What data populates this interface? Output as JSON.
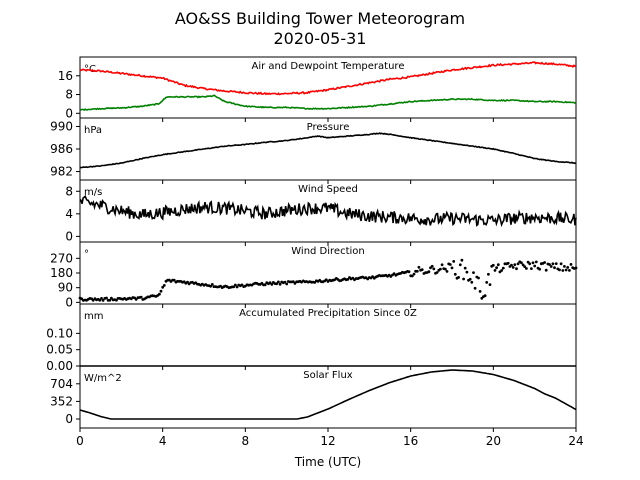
{
  "figure": {
    "title": "AO&SS Building Tower Meteorogram",
    "subtitle": "2020-05-31",
    "xlabel": "Time (UTC)"
  },
  "chart_data": {
    "type": "line",
    "x_range": [
      0,
      24
    ],
    "x_ticks": [
      0,
      4,
      8,
      12,
      16,
      20,
      24
    ],
    "x_tick_labels": [
      "0",
      "4",
      "8",
      "12",
      "16",
      "20",
      "24"
    ],
    "panels": [
      {
        "title": "Air and Dewpoint Temperature",
        "unit": "°C",
        "ylim": [
          -2,
          24
        ],
        "yticks": [
          0,
          8,
          16
        ],
        "grid": false,
        "series": [
          {
            "color": "#ff0000",
            "style": "line",
            "x": [
              0,
              1,
              2,
              3,
              4,
              5,
              6,
              7,
              8,
              9,
              10,
              11,
              12,
              13,
              14,
              15,
              16,
              17,
              18,
              19,
              20,
              21,
              22,
              23,
              24
            ],
            "y": [
              18.5,
              18.0,
              17.0,
              16.0,
              15.0,
              12.0,
              10.5,
              9.5,
              8.8,
              8.3,
              8.4,
              8.8,
              10.0,
              11.5,
              13.0,
              14.5,
              15.5,
              17.0,
              18.5,
              19.5,
              20.5,
              21.0,
              21.5,
              21.0,
              20.0
            ]
          },
          {
            "color": "#008000",
            "style": "line",
            "x": [
              0,
              1,
              2,
              3,
              3.8,
              4.2,
              5,
              6,
              6.5,
              7,
              8,
              9,
              10,
              11,
              12,
              13,
              14,
              15,
              16,
              17,
              18,
              19,
              20,
              21,
              22,
              23,
              24
            ],
            "y": [
              1.5,
              2.0,
              2.3,
              3.0,
              4.0,
              7.0,
              7.0,
              7.0,
              7.5,
              5.0,
              3.0,
              2.5,
              2.5,
              2.0,
              2.0,
              2.5,
              3.0,
              4.0,
              5.0,
              5.5,
              6.0,
              6.0,
              5.5,
              5.5,
              5.0,
              5.0,
              4.5
            ]
          }
        ]
      },
      {
        "title": "Pressure",
        "unit": "hPa",
        "ylim": [
          980.5,
          991.5
        ],
        "yticks": [
          982,
          986,
          990
        ],
        "grid": false,
        "series": [
          {
            "color": "#000000",
            "style": "line",
            "x": [
              0,
              1,
              2,
              3,
              4,
              5,
              6,
              7,
              8,
              9,
              10,
              11,
              11.5,
              12,
              13,
              14,
              14.5,
              15,
              16,
              17,
              18,
              19,
              20,
              21,
              22,
              23,
              24
            ],
            "y": [
              982.7,
              983.0,
              983.5,
              984.3,
              985.0,
              985.5,
              986.0,
              986.5,
              986.8,
              987.2,
              987.5,
              988.0,
              988.3,
              988.0,
              988.3,
              988.6,
              988.8,
              988.6,
              988.0,
              987.5,
              987.0,
              986.5,
              986.0,
              985.2,
              984.3,
              983.8,
              983.5
            ]
          }
        ]
      },
      {
        "title": "Wind Speed",
        "unit": "m/s",
        "ylim": [
          -1,
          10
        ],
        "yticks": [
          0,
          4,
          8
        ],
        "grid": false,
        "series": [
          {
            "color": "#000000",
            "style": "line",
            "x": [
              0,
              1,
              2,
              3,
              4,
              5,
              6,
              7,
              8,
              9,
              10,
              11,
              12,
              13,
              14,
              15,
              16,
              17,
              18,
              19,
              20,
              21,
              22,
              23,
              24
            ],
            "y": [
              6.2,
              5.5,
              4.5,
              3.8,
              4.2,
              4.8,
              5.2,
              5.0,
              4.5,
              4.0,
              4.6,
              5.0,
              5.0,
              4.0,
              3.6,
              3.4,
              3.2,
              3.0,
              3.2,
              3.0,
              2.8,
              3.2,
              3.4,
              3.2,
              3.0
            ]
          }
        ]
      },
      {
        "title": "Wind Direction",
        "unit": "°",
        "ylim": [
          -10,
          370
        ],
        "yticks": [
          0,
          90,
          180,
          270
        ],
        "grid": false,
        "series": [
          {
            "color": "#000000",
            "style": "dots",
            "x": [
              0,
              1,
              2,
              3,
              3.8,
              4.2,
              5,
              6,
              7,
              8,
              9,
              10,
              11,
              12,
              13,
              14,
              15,
              16,
              17,
              18,
              18.5,
              19,
              19.5,
              20,
              21,
              22,
              23,
              24
            ],
            "y": [
              20,
              18,
              22,
              25,
              40,
              135,
              125,
              110,
              95,
              105,
              115,
              120,
              125,
              135,
              145,
              150,
              165,
              185,
              200,
              215,
              200,
              150,
              60,
              200,
              225,
              230,
              215,
              210
            ]
          }
        ]
      },
      {
        "title": "Accumulated Precipitation Since 0Z",
        "unit": "mm",
        "ylim": [
          0,
          0.19
        ],
        "yticks": [
          0.0,
          0.05,
          0.1
        ],
        "ytick_labels": [
          "0.00",
          "0.05",
          "0.10"
        ],
        "grid": false,
        "series": [
          {
            "color": "#000000",
            "style": "line",
            "x": [
              0,
              24
            ],
            "y": [
              0,
              0
            ]
          }
        ]
      },
      {
        "title": "Solar Flux",
        "unit": "W/m^2",
        "ylim": [
          -180,
          1060
        ],
        "yticks": [
          0,
          352,
          704
        ],
        "grid": false,
        "series": [
          {
            "color": "#000000",
            "style": "line",
            "x": [
              0,
              0.5,
              1.0,
              1.5,
              10.5,
              11,
              12,
              13,
              14,
              15,
              16,
              17,
              18,
              19,
              20,
              21,
              22,
              22.5,
              23,
              24
            ],
            "y": [
              180,
              120,
              50,
              0,
              0,
              40,
              200,
              390,
              570,
              730,
              860,
              940,
              980,
              960,
              890,
              770,
              610,
              500,
              420,
              190
            ]
          }
        ]
      }
    ]
  }
}
